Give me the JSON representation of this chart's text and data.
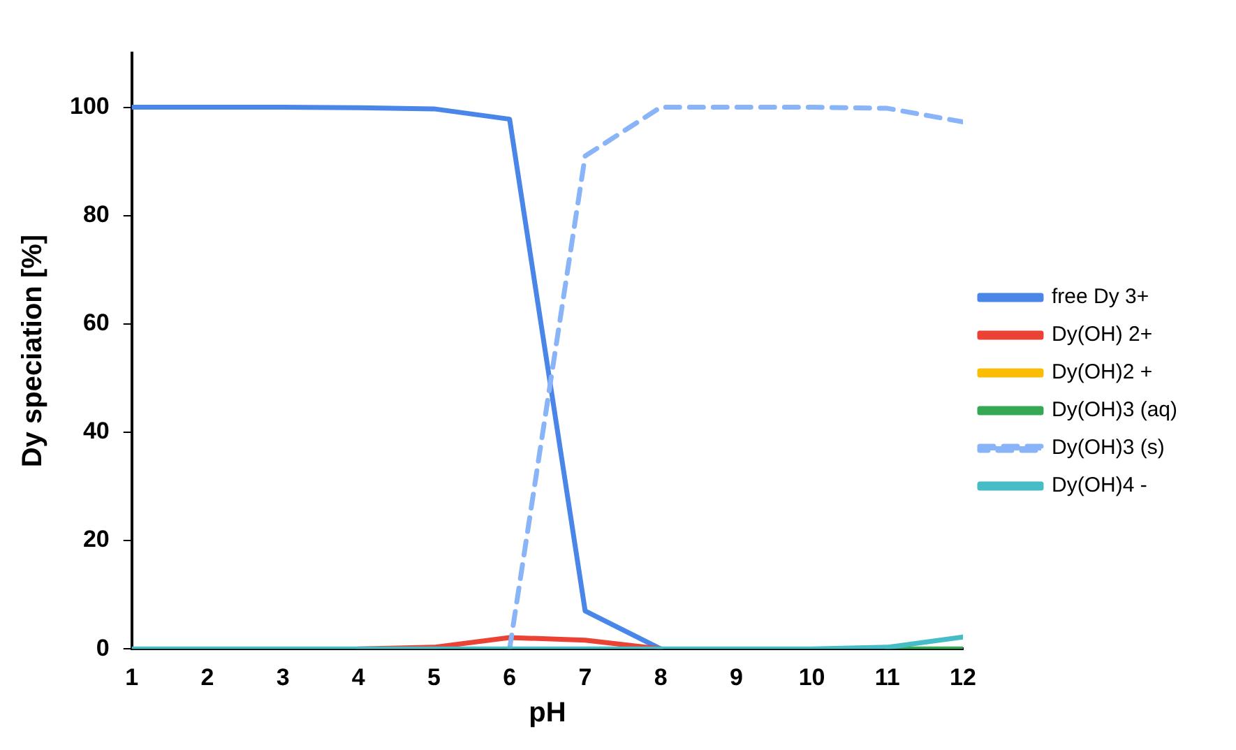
{
  "chart_data": {
    "type": "line",
    "xlabel": "pH",
    "ylabel": "Dy speciation [%]",
    "x": [
      1,
      2,
      3,
      4,
      5,
      6,
      7,
      8,
      9,
      10,
      11,
      12
    ],
    "series": [
      {
        "name": "free Dy 3+",
        "color": "#4a86e8",
        "values": [
          100,
          100,
          100,
          99.9,
          99.7,
          97.8,
          7,
          0,
          null,
          null,
          null,
          null
        ]
      },
      {
        "name": "Dy(OH) 2+",
        "color": "#ea4335",
        "values": [
          null,
          null,
          null,
          0,
          0.3,
          2.1,
          1.6,
          0,
          null,
          null,
          null,
          null
        ]
      },
      {
        "name": "Dy(OH)2 +",
        "color": "#fbbc04",
        "values": [
          null,
          null,
          null,
          null,
          null,
          null,
          null,
          null,
          null,
          null,
          null,
          null
        ]
      },
      {
        "name": "Dy(OH)3 (aq)",
        "color": "#34a853",
        "values": [
          null,
          null,
          null,
          null,
          null,
          null,
          null,
          null,
          null,
          null,
          0,
          0
        ]
      },
      {
        "name": "Dy(OH)3 (s)",
        "color": "#8ab4f8",
        "line_style": "dashed",
        "values": [
          null,
          null,
          null,
          null,
          null,
          0,
          91,
          100,
          100,
          100,
          99.8,
          97.3
        ]
      },
      {
        "name": "Dy(OH)4 -",
        "color": "#46bdc6",
        "values": [
          0,
          0,
          0,
          0,
          0,
          0,
          0,
          0,
          0,
          0,
          0.3,
          2.2
        ]
      }
    ],
    "xlim": [
      1,
      12
    ],
    "xticks": [
      1,
      2,
      3,
      4,
      5,
      6,
      7,
      8,
      9,
      10,
      11,
      12
    ],
    "ylim": [
      0,
      110
    ],
    "yticks": [
      0,
      20,
      40,
      60,
      80,
      100
    ],
    "grid": false,
    "legend": "right",
    "marker": "none",
    "line_style": "solid"
  }
}
